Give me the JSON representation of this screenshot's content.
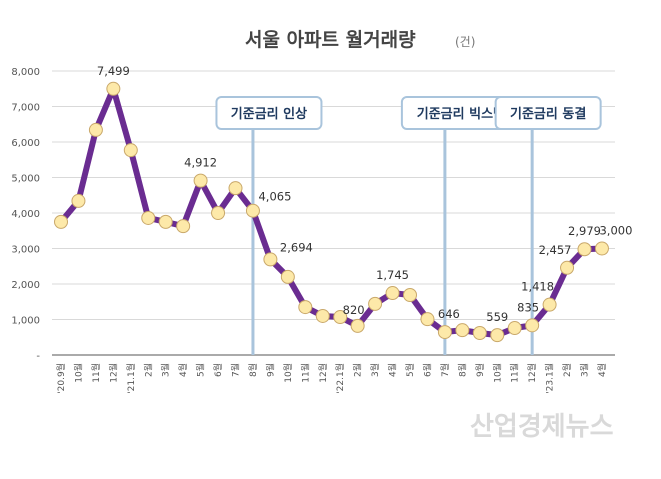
{
  "chart_data": {
    "type": "line",
    "title": "서울 아파트 월거래량",
    "unit": "(건)",
    "ylim": [
      0,
      8000
    ],
    "yticks": [
      "-",
      "1,000",
      "2,000",
      "3,000",
      "4,000",
      "5,000",
      "6,000",
      "7,000",
      "8,000"
    ],
    "grid": true,
    "categories": [
      "'20.9월",
      "10월",
      "11월",
      "12월",
      "'21.1월",
      "2월",
      "3월",
      "4월",
      "5월",
      "6월",
      "7월",
      "8월",
      "9월",
      "10월",
      "11월",
      "12월",
      "'22.1월",
      "2월",
      "3월",
      "4월",
      "5월",
      "6월",
      "7월",
      "8월",
      "9월",
      "10월",
      "11월",
      "12월",
      "'23.1월",
      "2월",
      "3월",
      "4월"
    ],
    "series": [
      {
        "name": "서울 아파트 월거래량",
        "color": "#6a2c91",
        "marker_color": "#fde9a9",
        "values": [
          3750,
          4340,
          6340,
          7499,
          5770,
          3860,
          3750,
          3630,
          4912,
          4000,
          4700,
          4065,
          2694,
          2200,
          1350,
          1100,
          1070,
          820,
          1440,
          1745,
          1690,
          1010,
          646,
          700,
          620,
          559,
          760,
          835,
          1418,
          2457,
          2979,
          3000
        ]
      }
    ],
    "data_labels": [
      {
        "index": 3,
        "text": "7,499"
      },
      {
        "index": 8,
        "text": "4,912"
      },
      {
        "index": 11,
        "text": "4,065"
      },
      {
        "index": 12,
        "text": "2,694"
      },
      {
        "index": 17,
        "text": "820"
      },
      {
        "index": 19,
        "text": "1,745"
      },
      {
        "index": 22,
        "text": "646"
      },
      {
        "index": 25,
        "text": "559"
      },
      {
        "index": 27,
        "text": "835"
      },
      {
        "index": 28,
        "text": "1,418"
      },
      {
        "index": 29,
        "text": "2,457"
      },
      {
        "index": 30,
        "text": "2,979"
      },
      {
        "index": 31,
        "text": "3,000"
      }
    ],
    "annotations": [
      {
        "index": 11,
        "text": "기준금리 인상"
      },
      {
        "index": 22,
        "text": "기준금리 빅스텝"
      },
      {
        "index": 27,
        "text": "기준금리 동결"
      }
    ]
  },
  "watermark": "산업경제뉴스"
}
